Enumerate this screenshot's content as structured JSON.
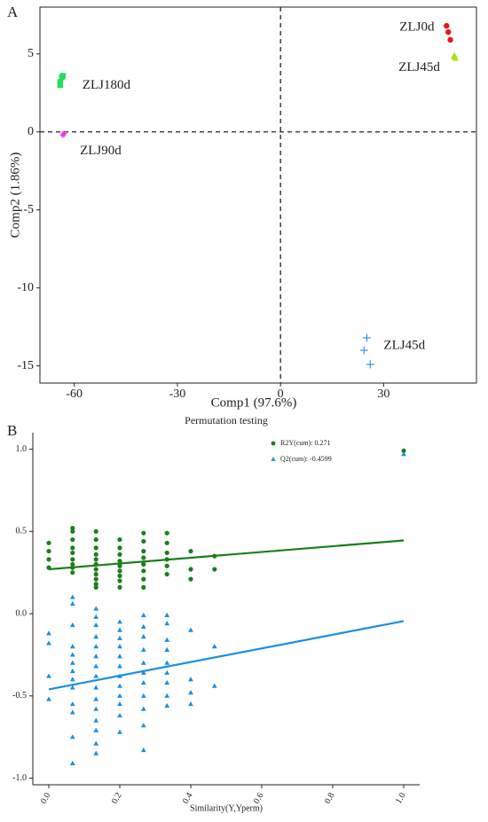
{
  "chart_data": [
    {
      "type": "scatter",
      "panel_label": "A",
      "x_label": "Comp1 (97.6%)",
      "y_label": "Comp2 (1.86%)",
      "xlim": [
        -70,
        57
      ],
      "ylim": [
        -16.1,
        8
      ],
      "xticks": [
        -60,
        -30,
        0,
        30
      ],
      "yticks": [
        -15,
        -10,
        -5,
        0,
        5
      ],
      "ref_lines": {
        "x": 0,
        "y": 0
      },
      "frame": true,
      "series": [
        {
          "name": "ZLJ0d",
          "color": "#e8151b",
          "marker": "circle",
          "x": [
            48.3,
            48.8,
            49.4
          ],
          "values": [
            6.8,
            6.4,
            5.9
          ]
        },
        {
          "name": "ZLJ45d",
          "color": "#a6e01b",
          "marker": "triangle",
          "x": [
            50.6,
            50.9,
            50.4
          ],
          "values": [
            4.9,
            4.7,
            4.8
          ]
        },
        {
          "name": "ZLJ180d",
          "color": "#22e05a",
          "marker": "square",
          "x": [
            -64.1,
            -63.6,
            -63.3,
            -64.1
          ],
          "values": [
            3.2,
            3.5,
            3.6,
            3.0
          ]
        },
        {
          "name": "ZLJ90d",
          "color": "#e040e0",
          "marker": "asterisk",
          "x": [
            -63.0,
            -63.3
          ],
          "values": [
            -0.1,
            -0.2
          ]
        },
        {
          "name": "ZLJ45d",
          "color": "#2a8be8",
          "marker": "plus",
          "x": [
            25.1,
            24.3,
            26.1
          ],
          "values": [
            -13.2,
            -14.0,
            -14.9
          ]
        }
      ]
    },
    {
      "type": "scatter",
      "panel_label": "B",
      "title": "Permutation testing",
      "x_label": "Similarity(Y,Yperm)",
      "xlim": [
        -0.045,
        1.045
      ],
      "ylim": [
        -1.04,
        1.1
      ],
      "xticks": [
        {
          "value": 0,
          "label": "0.0"
        },
        0.2,
        0.4,
        0.6,
        0.8,
        {
          "value": 1,
          "label": "1.0"
        }
      ],
      "yticks": [
        {
          "value": -1,
          "label": "-1.0"
        },
        -0.5,
        {
          "value": 0,
          "label": "0.0"
        },
        0.5,
        {
          "value": 1,
          "label": "1.0"
        }
      ],
      "legend": "top-right",
      "frame": false,
      "series": [
        {
          "name": "R2Y(cum): 0.271",
          "color": "#1a7f1a",
          "marker": "circle",
          "x": [
            0,
            0,
            0,
            0,
            0.067,
            0.067,
            0.067,
            0.067,
            0.067,
            0.067,
            0.067,
            0.067,
            0.067,
            0.133,
            0.133,
            0.133,
            0.133,
            0.133,
            0.133,
            0.133,
            0.133,
            0.133,
            0.133,
            0.133,
            0.2,
            0.2,
            0.2,
            0.2,
            0.2,
            0.2,
            0.2,
            0.2,
            0.2,
            0.267,
            0.267,
            0.267,
            0.267,
            0.267,
            0.267,
            0.267,
            0.267,
            0.333,
            0.333,
            0.333,
            0.333,
            0.333,
            0.333,
            0.4,
            0.4,
            0.4,
            0.467,
            0.467,
            1.0
          ],
          "values": [
            0.43,
            0.38,
            0.33,
            0.28,
            0.52,
            0.5,
            0.45,
            0.4,
            0.37,
            0.33,
            0.3,
            0.28,
            0.25,
            0.5,
            0.45,
            0.4,
            0.36,
            0.33,
            0.3,
            0.27,
            0.24,
            0.21,
            0.18,
            0.16,
            0.45,
            0.4,
            0.36,
            0.32,
            0.29,
            0.26,
            0.23,
            0.2,
            0.16,
            0.49,
            0.44,
            0.38,
            0.34,
            0.3,
            0.26,
            0.21,
            0.16,
            0.49,
            0.43,
            0.37,
            0.33,
            0.29,
            0.24,
            0.38,
            0.27,
            0.21,
            0.35,
            0.27,
            0.99
          ],
          "fit": {
            "x": [
              0,
              1
            ],
            "values": [
              0.27,
              0.445
            ]
          }
        },
        {
          "name": "Q2(cum): -0.4599",
          "color": "#1a8fe0",
          "marker": "triangle",
          "x": [
            0,
            0,
            0,
            0,
            0.067,
            0.067,
            0.067,
            0.067,
            0.067,
            0.067,
            0.067,
            0.067,
            0.067,
            0.067,
            0.067,
            0.067,
            0.067,
            0.133,
            0.133,
            0.133,
            0.133,
            0.133,
            0.133,
            0.133,
            0.133,
            0.133,
            0.133,
            0.133,
            0.133,
            0.133,
            0.133,
            0.133,
            0.2,
            0.2,
            0.2,
            0.2,
            0.2,
            0.2,
            0.2,
            0.2,
            0.2,
            0.2,
            0.2,
            0.2,
            0.267,
            0.267,
            0.267,
            0.267,
            0.267,
            0.267,
            0.267,
            0.267,
            0.267,
            0.267,
            0.267,
            0.333,
            0.333,
            0.333,
            0.333,
            0.333,
            0.333,
            0.333,
            0.333,
            0.333,
            0.4,
            0.4,
            0.4,
            0.4,
            0.467,
            0.467,
            1.0
          ],
          "values": [
            -0.12,
            -0.18,
            -0.38,
            -0.52,
            0.1,
            0.06,
            -0.07,
            -0.2,
            -0.25,
            -0.3,
            -0.35,
            -0.4,
            -0.45,
            -0.55,
            -0.6,
            -0.75,
            -0.91,
            0.03,
            -0.02,
            -0.07,
            -0.14,
            -0.2,
            -0.26,
            -0.32,
            -0.38,
            -0.45,
            -0.52,
            -0.58,
            -0.65,
            -0.71,
            -0.79,
            -0.85,
            -0.05,
            -0.1,
            -0.15,
            -0.2,
            -0.26,
            -0.32,
            -0.38,
            -0.44,
            -0.5,
            -0.55,
            -0.62,
            -0.72,
            -0.01,
            -0.08,
            -0.14,
            -0.22,
            -0.3,
            -0.36,
            -0.42,
            -0.5,
            -0.58,
            -0.68,
            -0.83,
            -0.01,
            -0.06,
            -0.16,
            -0.22,
            -0.3,
            -0.36,
            -0.42,
            -0.5,
            -0.56,
            -0.1,
            -0.4,
            -0.48,
            -0.55,
            -0.2,
            -0.44,
            0.97
          ],
          "fit": {
            "x": [
              0,
              1
            ],
            "values": [
              -0.46,
              -0.045
            ]
          }
        }
      ]
    }
  ]
}
